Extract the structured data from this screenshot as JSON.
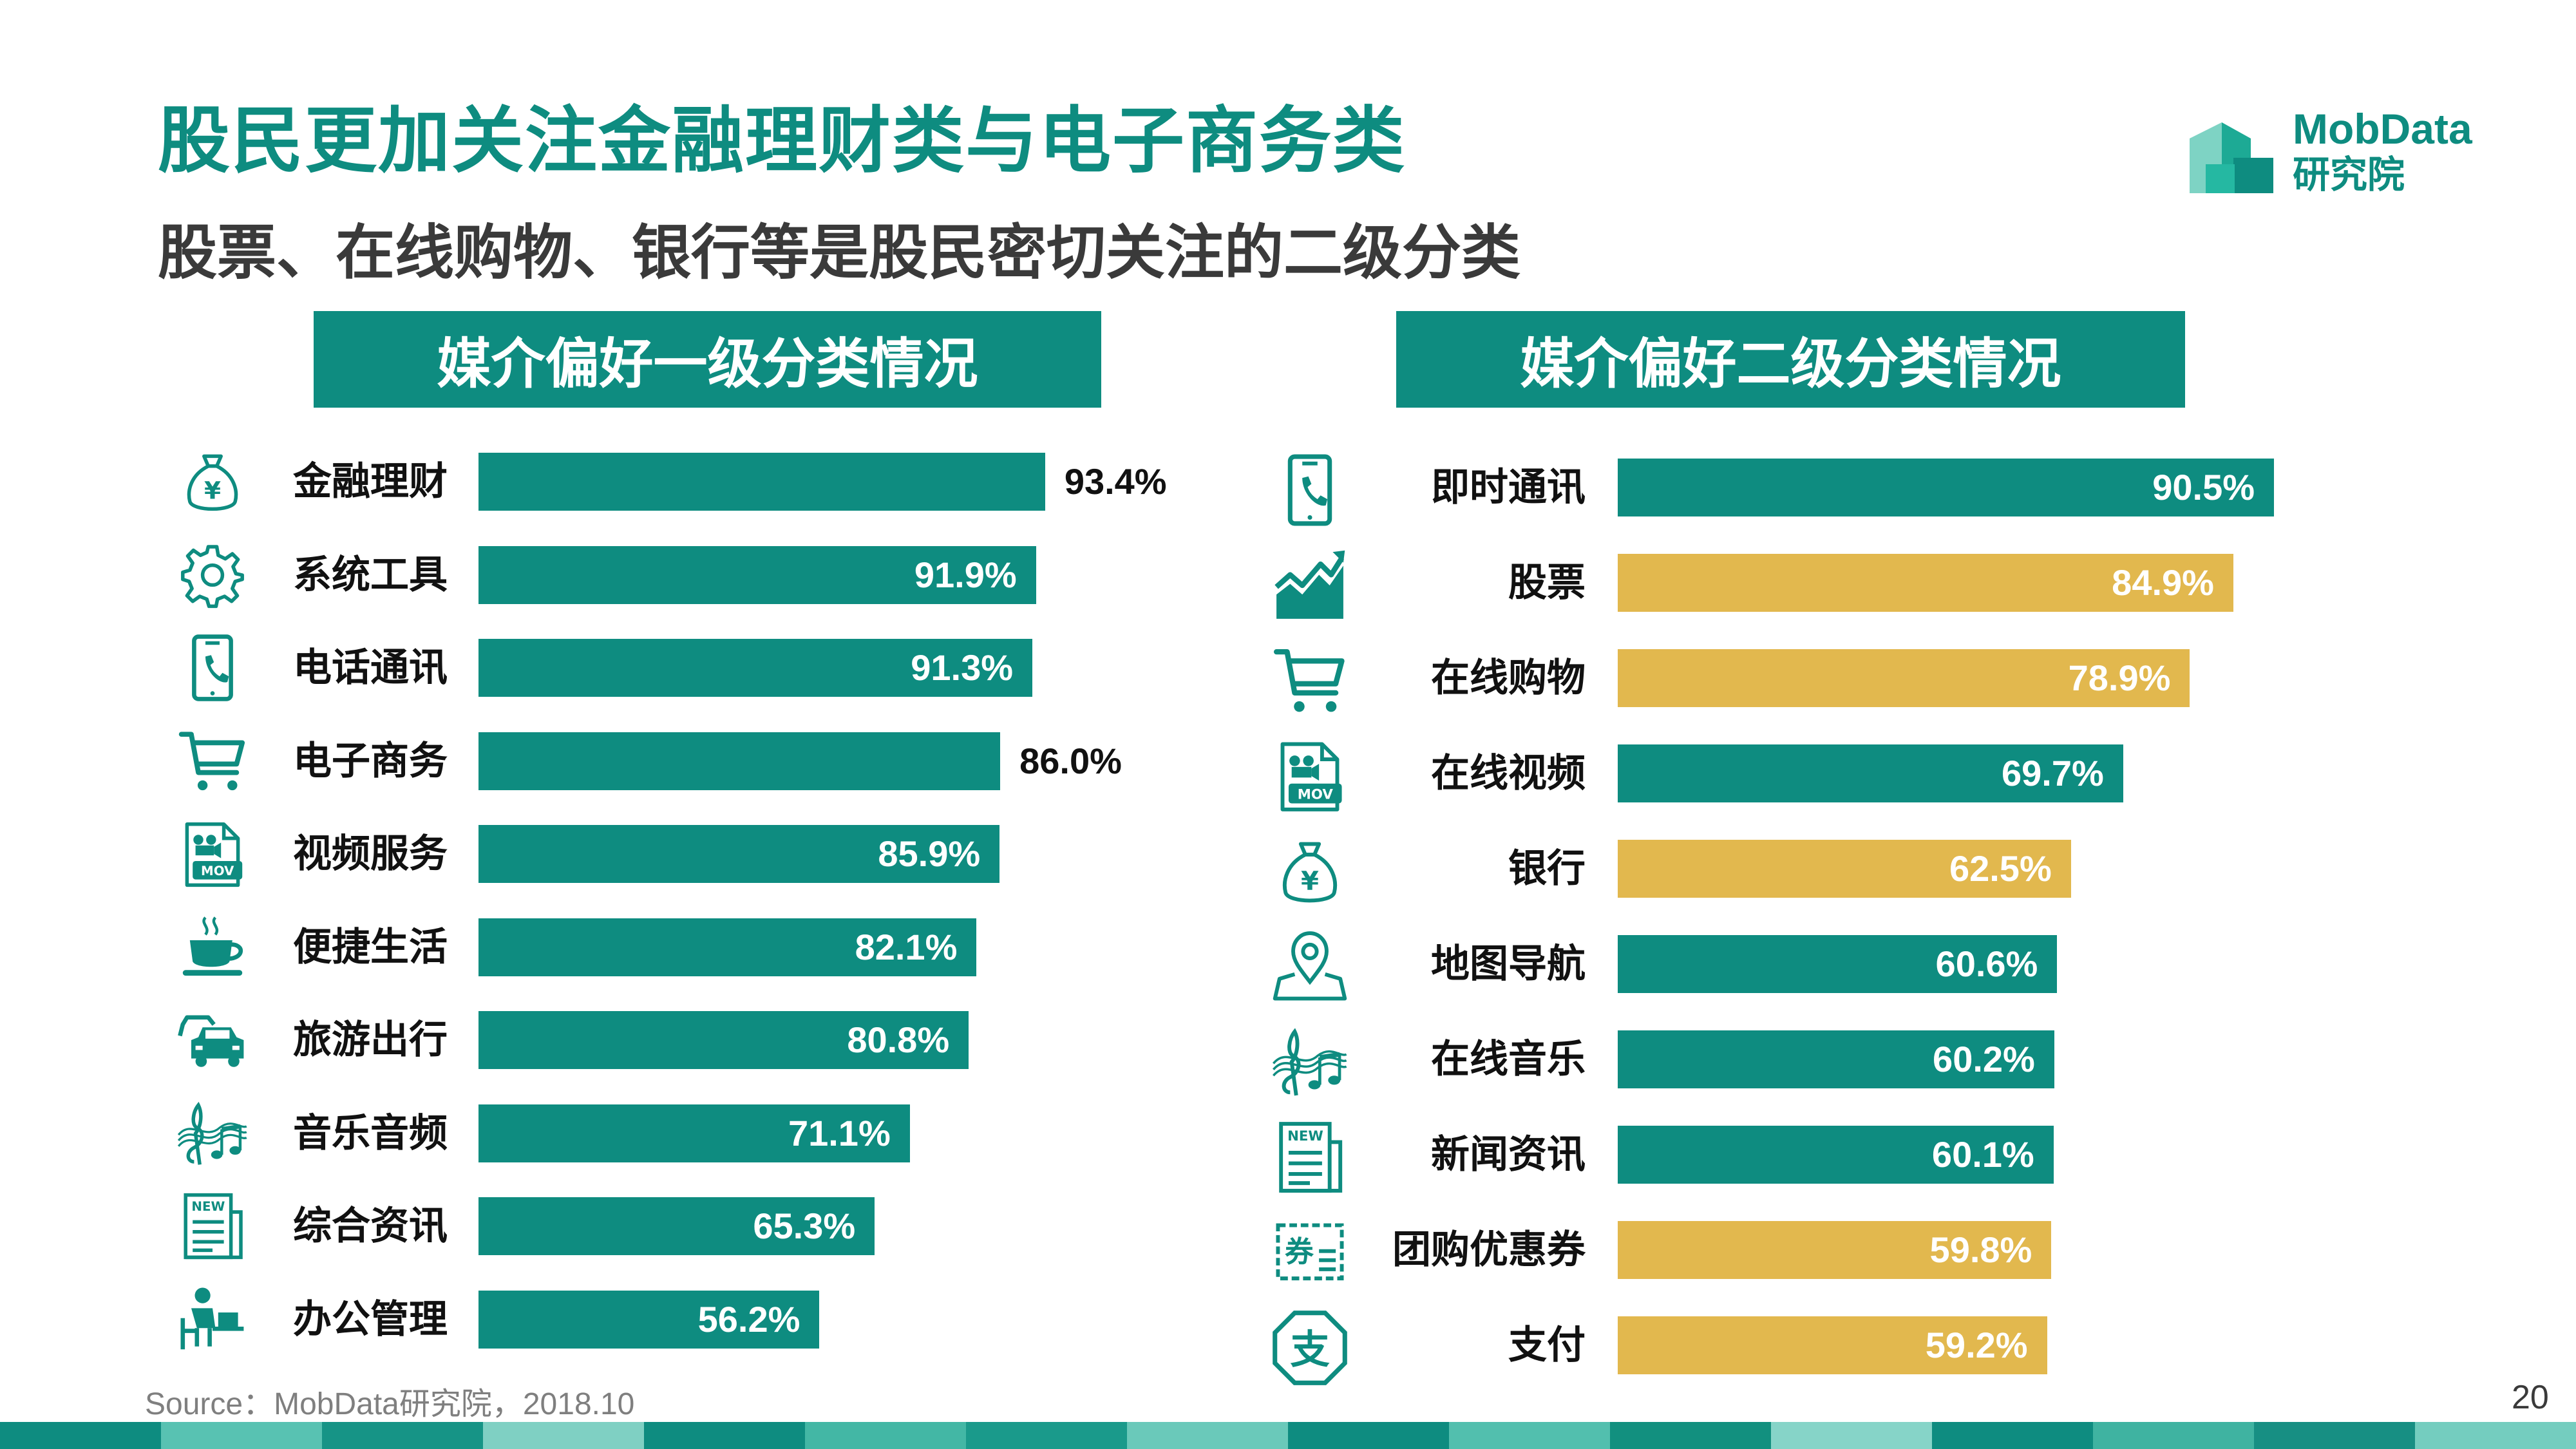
{
  "header": {
    "title": "股民更加关注金融理财类与电子商务类",
    "subtitle": "股票、在线购物、银行等是股民密切关注的二级分类"
  },
  "logo": {
    "line1": "MobData",
    "line2": "研究院"
  },
  "colors": {
    "teal": "#0E8C80",
    "gold": "#E2B84E",
    "dark_text": "#111111"
  },
  "panels": {
    "left": {
      "title": "媒介偏好一级分类情况"
    },
    "right": {
      "title": "媒介偏好二级分类情况"
    }
  },
  "chart_data": [
    {
      "type": "bar",
      "orientation": "horizontal",
      "title": "媒介偏好一级分类情况",
      "categories": [
        "金融理财",
        "系统工具",
        "电话通讯",
        "电子商务",
        "视频服务",
        "便捷生活",
        "旅游出行",
        "音乐音频",
        "综合资讯",
        "办公管理"
      ],
      "values": [
        93.4,
        91.9,
        91.3,
        86.0,
        85.9,
        82.1,
        80.8,
        71.1,
        65.3,
        56.2
      ],
      "labels": [
        "93.4%",
        "91.9%",
        "91.3%",
        "86.0%",
        "85.9%",
        "82.1%",
        "80.8%",
        "71.1%",
        "65.3%",
        "56.2%"
      ],
      "icons": [
        "money-bag-icon",
        "gear-icon",
        "phone-icon",
        "cart-icon",
        "video-file-icon",
        "coffee-cup-icon",
        "cars-icon",
        "music-icon",
        "news-icon",
        "office-icon"
      ],
      "bar_colors": [
        "teal",
        "teal",
        "teal",
        "teal",
        "teal",
        "teal",
        "teal",
        "teal",
        "teal",
        "teal"
      ],
      "unit": "%",
      "xlim": [
        0,
        100
      ]
    },
    {
      "type": "bar",
      "orientation": "horizontal",
      "title": "媒介偏好二级分类情况",
      "categories": [
        "即时通讯",
        "股票",
        "在线购物",
        "在线视频",
        "银行",
        "地图导航",
        "在线音乐",
        "新闻资讯",
        "团购优惠券",
        "支付"
      ],
      "values": [
        90.5,
        84.9,
        78.9,
        69.7,
        62.5,
        60.6,
        60.2,
        60.1,
        59.8,
        59.2
      ],
      "labels": [
        "90.5%",
        "84.9%",
        "78.9%",
        "69.7%",
        "62.5%",
        "60.6%",
        "60.2%",
        "60.1%",
        "59.8%",
        "59.2%"
      ],
      "icons": [
        "phone-icon",
        "stock-chart-icon",
        "cart-icon",
        "video-file-icon",
        "money-bag-icon",
        "map-pin-icon",
        "music-icon",
        "news-icon",
        "coupon-icon",
        "alipay-icon"
      ],
      "bar_colors": [
        "teal",
        "gold",
        "gold",
        "teal",
        "gold",
        "teal",
        "teal",
        "teal",
        "gold",
        "gold"
      ],
      "unit": "%",
      "xlim": [
        0,
        100
      ]
    }
  ],
  "footer": {
    "source": "Source：MobData研究院，2018.10",
    "page_number": "20"
  }
}
